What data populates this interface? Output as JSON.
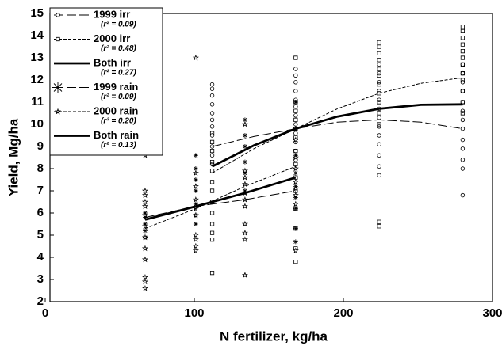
{
  "chart_data": {
    "type": "scatter",
    "x_label": "N fertilizer, kg/ha",
    "y_label": "Yield, Mg/ha",
    "xlim": [
      0,
      300
    ],
    "ylim": [
      2,
      15
    ],
    "xticks": [
      0,
      100,
      200,
      300
    ],
    "yticks": [
      2,
      3,
      4,
      5,
      6,
      7,
      8,
      9,
      10,
      11,
      12,
      13,
      14,
      15
    ],
    "grid": false,
    "legend": "upper left",
    "series": [
      {
        "name": "1999 irr",
        "r2": "(r² = 0.09)",
        "marker": "circle",
        "dash": "long",
        "x": [
          112,
          112,
          112,
          112,
          112,
          112,
          112,
          112,
          112,
          112,
          112,
          168,
          168,
          168,
          168,
          168,
          168,
          168,
          168,
          168,
          168,
          168,
          168,
          224,
          224,
          224,
          224,
          224,
          224,
          224,
          224,
          224,
          224,
          224,
          224,
          224,
          280,
          280,
          280,
          280,
          280,
          280,
          280,
          280,
          280,
          280,
          280,
          280,
          280
        ],
        "values": [
          11.8,
          11.6,
          11.3,
          10.9,
          10.5,
          10.2,
          9.9,
          9.5,
          9.0,
          8.6,
          8.2,
          12.5,
          12.2,
          11.9,
          11.5,
          11.1,
          10.8,
          10.4,
          10.0,
          9.6,
          9.2,
          8.8,
          8.4,
          12.7,
          12.3,
          11.9,
          11.5,
          11.1,
          10.7,
          10.3,
          9.9,
          9.5,
          9.1,
          8.6,
          8.1,
          7.7,
          12.7,
          12.3,
          11.9,
          11.5,
          11.0,
          10.6,
          10.2,
          9.8,
          9.3,
          8.9,
          8.4,
          8.0,
          6.8
        ],
        "fit_x": [
          112,
          140,
          168,
          196,
          224,
          252,
          280
        ],
        "fit_values": [
          9.0,
          9.45,
          9.8,
          10.1,
          10.2,
          10.1,
          9.8
        ]
      },
      {
        "name": "2000 irr",
        "r2": "(r² = 0.48)",
        "marker": "square",
        "dash": "short",
        "x": [
          112,
          112,
          112,
          112,
          112,
          112,
          112,
          112,
          112,
          112,
          112,
          112,
          112,
          168,
          168,
          168,
          168,
          168,
          168,
          168,
          168,
          168,
          168,
          168,
          168,
          168,
          168,
          224,
          224,
          224,
          224,
          224,
          224,
          224,
          224,
          224,
          224,
          224,
          224,
          224,
          280,
          280,
          280,
          280,
          280,
          280,
          280,
          280,
          280,
          280,
          280,
          280
        ],
        "values": [
          9.6,
          9.2,
          8.8,
          8.3,
          7.9,
          7.4,
          7.0,
          6.5,
          6.0,
          5.5,
          5.1,
          4.8,
          3.3,
          13.0,
          11.0,
          10.6,
          10.2,
          9.8,
          9.4,
          8.8,
          8.2,
          7.6,
          7.0,
          6.2,
          5.3,
          4.4,
          3.8,
          13.7,
          13.5,
          13.2,
          12.9,
          12.5,
          12.2,
          11.8,
          11.4,
          11.0,
          10.5,
          10.0,
          5.6,
          5.4,
          14.4,
          14.2,
          13.9,
          13.6,
          13.3,
          13.0,
          12.7,
          12.3,
          12.0,
          11.5,
          11.0,
          10.5
        ],
        "fit_x": [
          112,
          140,
          168,
          196,
          224,
          252,
          280
        ],
        "fit_values": [
          7.8,
          8.9,
          9.8,
          10.7,
          11.4,
          11.85,
          12.1
        ]
      },
      {
        "name": "Both irr",
        "r2": "(r² = 0.27)",
        "marker": "none",
        "dash": "solid",
        "x": [],
        "values": [],
        "fit_x": [
          112,
          140,
          168,
          196,
          224,
          252,
          280
        ],
        "fit_values": [
          8.1,
          9.05,
          9.8,
          10.35,
          10.7,
          10.88,
          10.9
        ]
      },
      {
        "name": "1999 rain",
        "r2": "(r² = 0.09)",
        "marker": "asterisk",
        "dash": "long",
        "x": [
          67,
          67,
          67,
          67,
          67,
          101,
          101,
          101,
          101,
          101,
          101,
          101,
          134,
          134,
          134,
          134,
          134,
          134,
          168,
          168,
          168,
          168,
          168,
          168,
          168,
          168,
          168
        ],
        "values": [
          6.0,
          5.8,
          5.5,
          5.2,
          4.9,
          8.6,
          8.0,
          7.5,
          7.0,
          6.4,
          5.9,
          5.5,
          10.2,
          9.5,
          9.0,
          8.3,
          7.8,
          7.0,
          11.0,
          9.3,
          8.6,
          7.8,
          7.2,
          6.7,
          6.2,
          5.3,
          4.7
        ],
        "fit_x": [
          67,
          101,
          134,
          168
        ],
        "fit_values": [
          5.8,
          6.3,
          6.6,
          7.0
        ]
      },
      {
        "name": "2000 rain",
        "r2": "(r² = 0.20)",
        "marker": "star",
        "dash": "short",
        "x": [
          67,
          67,
          67,
          67,
          67,
          67,
          67,
          67,
          67,
          67,
          67,
          67,
          67,
          101,
          101,
          101,
          101,
          101,
          101,
          101,
          101,
          101,
          101,
          134,
          134,
          134,
          134,
          134,
          134,
          134,
          134,
          134,
          134,
          134,
          168,
          168,
          168,
          168,
          168,
          168,
          168,
          168,
          168
        ],
        "values": [
          8.6,
          7.0,
          6.8,
          6.5,
          6.3,
          5.9,
          5.4,
          4.9,
          4.4,
          3.9,
          3.1,
          2.9,
          2.6,
          13.0,
          7.8,
          7.2,
          6.6,
          6.2,
          5.9,
          5.0,
          4.8,
          4.5,
          4.3,
          10.0,
          7.9,
          7.6,
          7.3,
          6.9,
          6.6,
          6.3,
          5.5,
          5.1,
          4.8,
          3.2,
          9.8,
          9.3,
          8.5,
          8.0,
          7.4,
          7.1,
          6.8,
          6.4,
          4.3
        ],
        "fit_x": [
          67,
          101,
          134,
          168
        ],
        "fit_values": [
          5.3,
          6.2,
          7.2,
          8.1
        ]
      },
      {
        "name": "Both rain",
        "r2": "(r² = 0.13)",
        "marker": "none",
        "dash": "solid",
        "x": [],
        "values": [],
        "fit_x": [
          67,
          101,
          134,
          168
        ],
        "fit_values": [
          5.7,
          6.3,
          6.9,
          7.6
        ]
      }
    ]
  }
}
